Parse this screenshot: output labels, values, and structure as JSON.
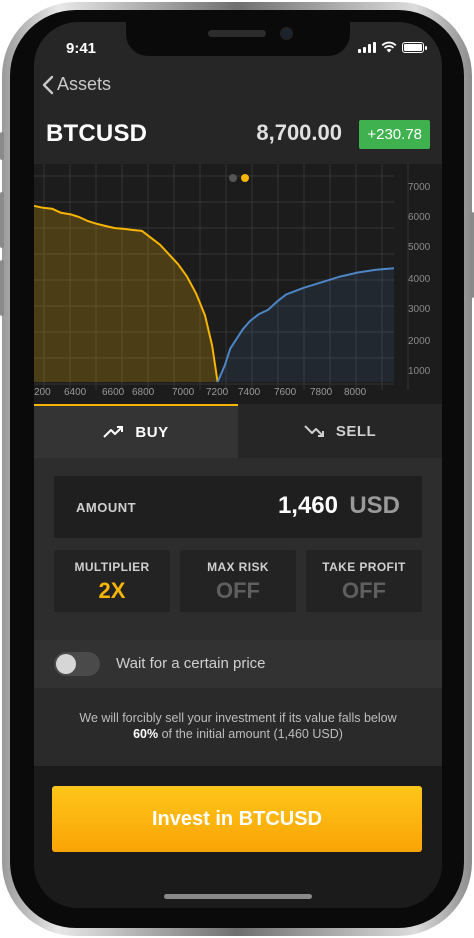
{
  "status": {
    "time": "9:41"
  },
  "nav": {
    "back_label": "Assets"
  },
  "header": {
    "symbol": "BTCUSD",
    "price": "8,700.00",
    "change": "+230.78"
  },
  "colors": {
    "accent": "#f7b500",
    "positive": "#3fb24f",
    "bid_line": "#f7b500",
    "ask_line": "#4d86c6"
  },
  "chart_data": {
    "type": "area",
    "title": "",
    "x_ticks": [
      "200",
      "6400",
      "6600",
      "6800",
      "7000",
      "7200",
      "7400",
      "7600",
      "7800",
      "8000"
    ],
    "y_ticks": [
      "7000",
      "6000",
      "5000",
      "4000",
      "3000",
      "2000",
      "1000"
    ],
    "page_indicator": {
      "count": 2,
      "active": 1
    },
    "series": [
      {
        "name": "",
        "color": "#f7b500",
        "points": [
          [
            6200,
            6350
          ],
          [
            6250,
            6280
          ],
          [
            6300,
            6250
          ],
          [
            6350,
            6100
          ],
          [
            6400,
            6050
          ],
          [
            6450,
            5950
          ],
          [
            6500,
            5800
          ],
          [
            6550,
            5700
          ],
          [
            6600,
            5620
          ],
          [
            6650,
            5550
          ],
          [
            6700,
            5520
          ],
          [
            6750,
            5480
          ],
          [
            6800,
            5450
          ],
          [
            6850,
            5200
          ],
          [
            6900,
            4950
          ],
          [
            6950,
            4600
          ],
          [
            7000,
            4250
          ],
          [
            7050,
            3800
          ],
          [
            7100,
            3200
          ],
          [
            7150,
            2400
          ],
          [
            7190,
            1300
          ],
          [
            7220,
            0
          ]
        ]
      },
      {
        "name": "",
        "color": "#4d86c6",
        "points": [
          [
            7220,
            0
          ],
          [
            7260,
            600
          ],
          [
            7290,
            1200
          ],
          [
            7330,
            1600
          ],
          [
            7360,
            1900
          ],
          [
            7400,
            2200
          ],
          [
            7450,
            2450
          ],
          [
            7500,
            2600
          ],
          [
            7550,
            2900
          ],
          [
            7600,
            3150
          ],
          [
            7700,
            3400
          ],
          [
            7800,
            3600
          ],
          [
            7900,
            3800
          ],
          [
            8000,
            3950
          ],
          [
            8100,
            4050
          ],
          [
            8200,
            4100
          ]
        ]
      }
    ]
  },
  "tabs": [
    {
      "label": "BUY"
    },
    {
      "label": "SELL"
    }
  ],
  "amount": {
    "label": "AMOUNT",
    "value": "1,460",
    "currency": "USD"
  },
  "options": [
    {
      "label": "MULTIPLIER",
      "value": "2X"
    },
    {
      "label": "MAX RISK",
      "value": "OFF"
    },
    {
      "label": "TAKE PROFIT",
      "value": "OFF"
    }
  ],
  "wait": {
    "label": "Wait for a certain price",
    "enabled": false
  },
  "note": {
    "line1": "We will forcibly sell your investment if its value falls below",
    "percent": "60%",
    "line2_rest": " of the initial amount (1,460 USD)"
  },
  "cta": {
    "label": "Invest in BTCUSD"
  }
}
